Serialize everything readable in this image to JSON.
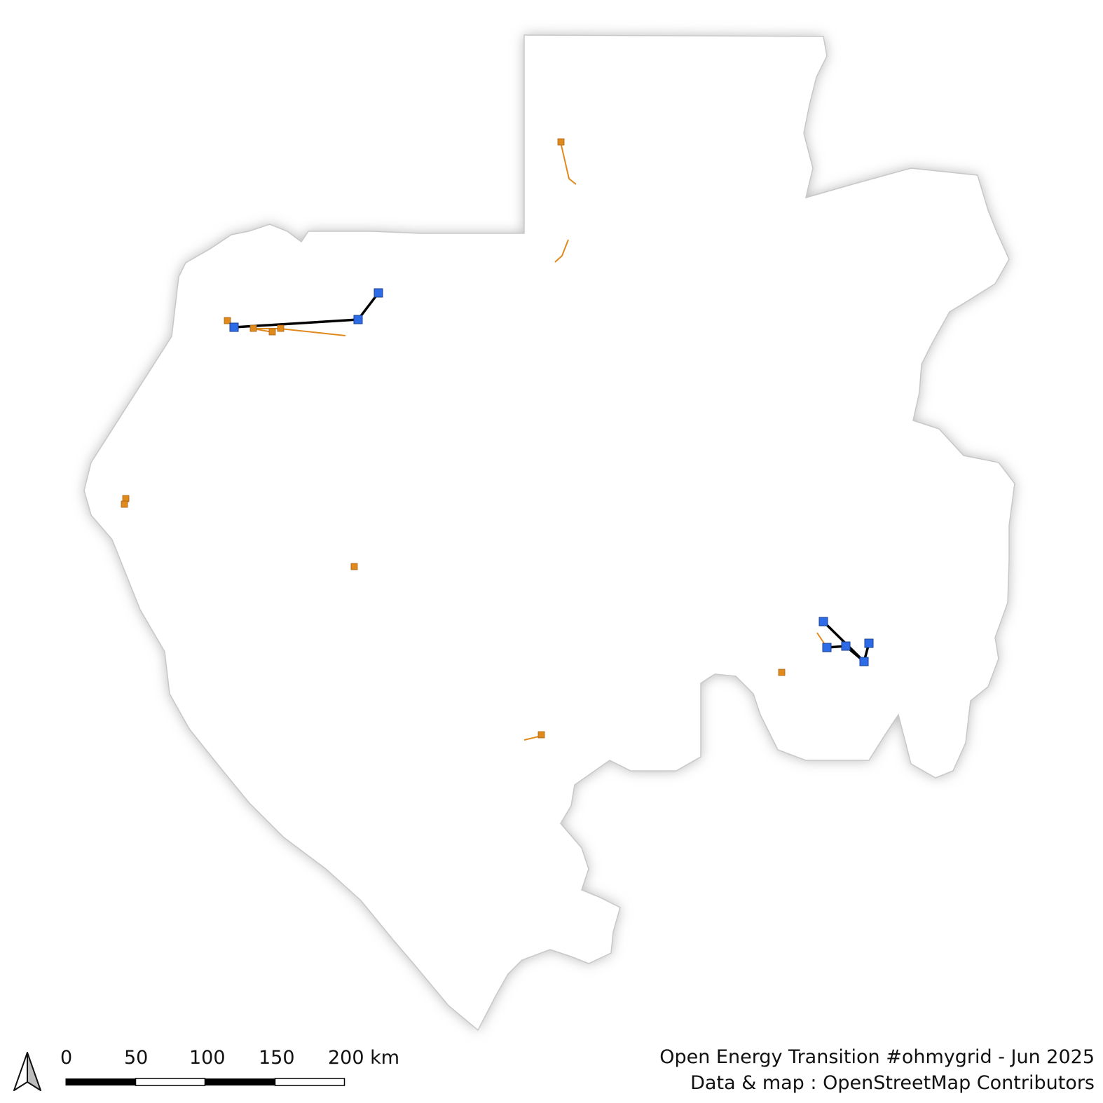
{
  "credit": {
    "line1": "Open Energy Transition #ohmygrid - Jun 2025",
    "line2": "Data & map : OpenStreetMap Contributors"
  },
  "scale_bar": {
    "labels": [
      "0",
      "50",
      "100",
      "150",
      "200 km"
    ]
  },
  "legend_colors": {
    "substation_high": "#2e6be6",
    "substation_low": "#e08a1e",
    "line_high": "#000000",
    "line_low": "#e08a1e",
    "country_fill": "#ffffff",
    "shadow": "#bdbdbd"
  }
}
